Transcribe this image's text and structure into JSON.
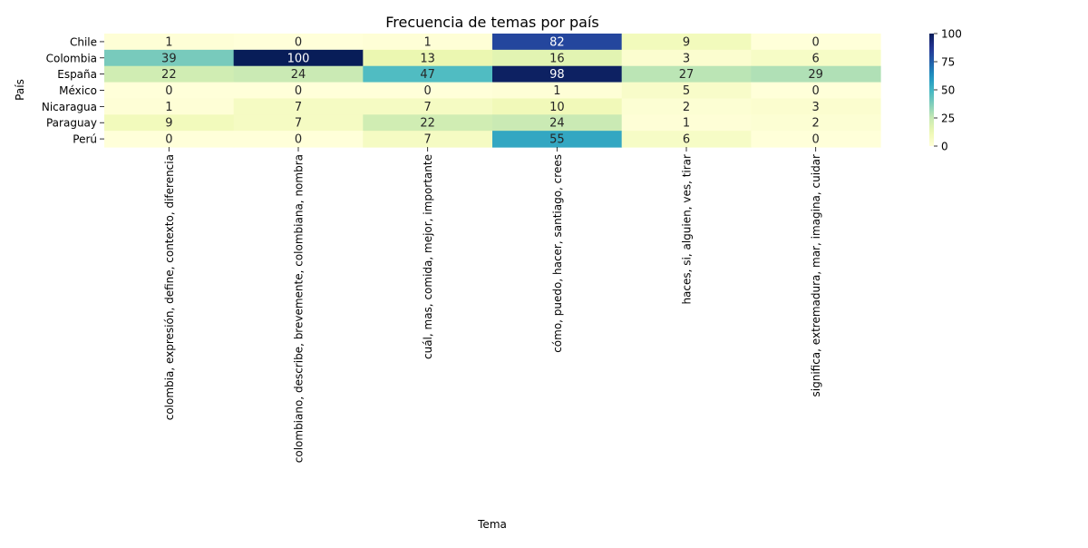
{
  "chart_data": {
    "type": "heatmap",
    "title": "Frecuencia de temas por país",
    "xlabel": "Tema",
    "ylabel": "País",
    "rows": [
      "Chile",
      "Colombia",
      "España",
      "México",
      "Nicaragua",
      "Paraguay",
      "Perú"
    ],
    "columns": [
      "colombia, expresión, define, contexto, diferencia",
      "colombiano, describe, brevemente, colombiana, nombra",
      "cuál, mas, comida, mejor, importante",
      "cómo, puedo, hacer, santiago, crees",
      "haces, si, alguien, ves, tirar",
      "significa, extremadura, mar, imagina, cuidar"
    ],
    "values": [
      [
        1,
        0,
        1,
        82,
        9,
        0
      ],
      [
        39,
        100,
        13,
        16,
        3,
        6
      ],
      [
        22,
        24,
        47,
        98,
        27,
        29
      ],
      [
        0,
        0,
        0,
        1,
        5,
        0
      ],
      [
        1,
        7,
        7,
        10,
        2,
        3
      ],
      [
        9,
        7,
        22,
        24,
        1,
        2
      ],
      [
        0,
        0,
        7,
        55,
        6,
        0
      ]
    ],
    "vmin": 0,
    "vmax": 100,
    "colormap": "YlGnBu",
    "colorbar_ticks": [
      0,
      25,
      50,
      75,
      100
    ],
    "annotate": true,
    "grid": false
  }
}
